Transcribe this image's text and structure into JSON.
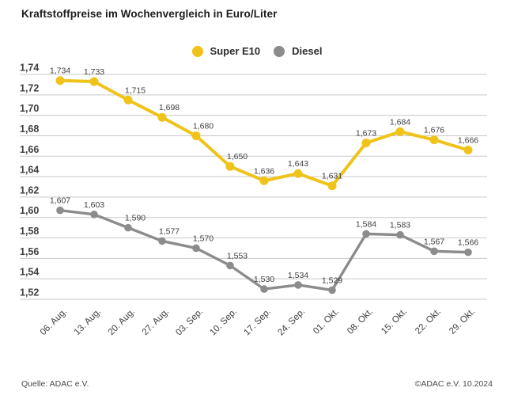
{
  "title": "Kraftstoffpreise im Wochenvergleich in Euro/Liter",
  "legend": [
    {
      "label": "Super E10",
      "color": "#EFC319"
    },
    {
      "label": "Diesel",
      "color": "#8C8C8C"
    }
  ],
  "footer": {
    "source": "Quelle: ADAC e.V.",
    "copyright": "©ADAC e.V. 10.2024"
  },
  "chart_data": {
    "type": "line",
    "title": "Kraftstoffpreise im Wochenvergleich in Euro/Liter",
    "unit": "Euro/Liter",
    "categories": [
      "06. Aug.",
      "13. Aug.",
      "20. Aug.",
      "27. Aug.",
      "03. Sep.",
      "10. Sep.",
      "17. Sep.",
      "24. Sep.",
      "01. Okt.",
      "08. Okt.",
      "15. Okt.",
      "22. Okt.",
      "29. Okt."
    ],
    "series": [
      {
        "name": "Super E10",
        "color": "#EFC319",
        "values": [
          1.734,
          1.733,
          1.715,
          1.698,
          1.68,
          1.65,
          1.636,
          1.643,
          1.631,
          1.673,
          1.684,
          1.676,
          1.666
        ]
      },
      {
        "name": "Diesel",
        "color": "#8C8C8C",
        "values": [
          1.607,
          1.603,
          1.59,
          1.577,
          1.57,
          1.553,
          1.53,
          1.534,
          1.529,
          1.584,
          1.583,
          1.567,
          1.566
        ]
      }
    ],
    "ylim": [
      1.52,
      1.74
    ],
    "ytick_step": 0.02,
    "yticks": [
      "1,74",
      "1,72",
      "1,70",
      "1,68",
      "1,66",
      "1,64",
      "1,62",
      "1,60",
      "1,58",
      "1,56",
      "1,54",
      "1,52"
    ],
    "decimal_separator": ",",
    "grid": true,
    "legend_position": "top-center",
    "colors": {
      "grid": "#C9C9C9",
      "label": "#3F3F3F"
    }
  }
}
